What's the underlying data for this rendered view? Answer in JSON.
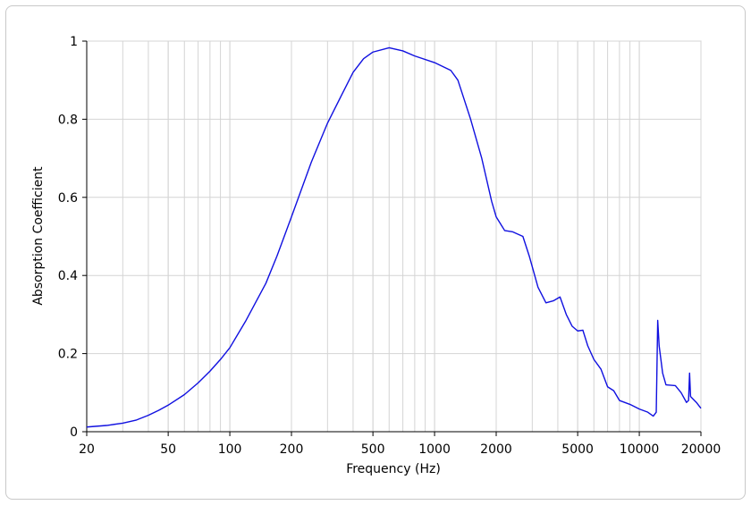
{
  "chart_data": {
    "type": "line",
    "x_label": "Frequency (Hz)",
    "y_label": "Absorption Coefficient",
    "x": [
      20,
      25,
      30,
      35,
      40,
      45,
      50,
      60,
      70,
      80,
      90,
      100,
      120,
      150,
      170,
      200,
      250,
      300,
      350,
      400,
      450,
      500,
      600,
      700,
      800,
      1000,
      1200,
      1300,
      1500,
      1700,
      1900,
      2000,
      2200,
      2400,
      2700,
      2900,
      3200,
      3500,
      3800,
      4100,
      4400,
      4700,
      5000,
      5300,
      5600,
      6000,
      6500,
      7000,
      7500,
      8000,
      9000,
      10000,
      11000,
      11700,
      12100,
      12300,
      12500,
      13000,
      13500,
      15000,
      16000,
      17000,
      17400,
      17600,
      17800,
      19000,
      20000
    ],
    "values": [
      0.012,
      0.016,
      0.022,
      0.03,
      0.042,
      0.055,
      0.068,
      0.095,
      0.125,
      0.155,
      0.185,
      0.215,
      0.285,
      0.38,
      0.45,
      0.55,
      0.69,
      0.79,
      0.86,
      0.92,
      0.955,
      0.972,
      0.983,
      0.975,
      0.962,
      0.945,
      0.925,
      0.9,
      0.8,
      0.7,
      0.59,
      0.55,
      0.515,
      0.512,
      0.5,
      0.45,
      0.37,
      0.33,
      0.335,
      0.345,
      0.3,
      0.27,
      0.258,
      0.26,
      0.22,
      0.185,
      0.16,
      0.115,
      0.105,
      0.08,
      0.07,
      0.058,
      0.05,
      0.04,
      0.05,
      0.285,
      0.22,
      0.15,
      0.12,
      0.118,
      0.1,
      0.075,
      0.08,
      0.15,
      0.09,
      0.075,
      0.06
    ],
    "color": "#1010e0",
    "x_log": true,
    "xlim": [
      20,
      20000
    ],
    "xticks": [
      20,
      50,
      100,
      200,
      500,
      1000,
      2000,
      5000,
      10000,
      20000
    ],
    "ylim": [
      0,
      1
    ],
    "yticks": [
      0,
      0.2,
      0.4,
      0.6,
      0.8,
      1
    ],
    "grid": true,
    "minor_grid": true
  }
}
